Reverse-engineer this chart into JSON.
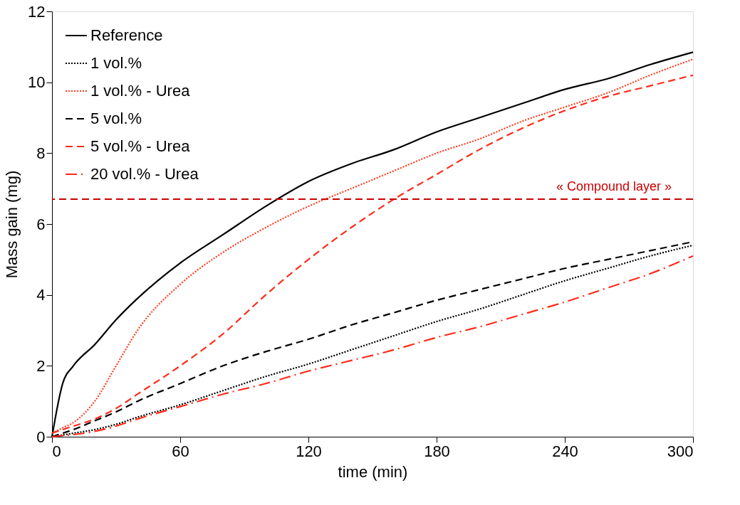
{
  "chart_data": {
    "type": "line",
    "xlabel": "time (min)",
    "ylabel": "Mass gain (mg)",
    "xlim": [
      0,
      300
    ],
    "xticks": [
      0,
      60,
      120,
      180,
      240,
      300
    ],
    "ylim": [
      0,
      12
    ],
    "yticks": [
      0,
      2,
      4,
      6,
      8,
      10,
      12
    ],
    "grid": false,
    "legend": "top left",
    "marker": "none",
    "x": [
      0,
      5,
      10,
      20,
      30,
      40,
      60,
      80,
      100,
      120,
      140,
      160,
      180,
      200,
      220,
      240,
      260,
      280,
      300
    ],
    "series": [
      {
        "name": "Reference",
        "color": "#000000",
        "line_style": "solid",
        "values": [
          0,
          1.5,
          2.0,
          2.6,
          3.3,
          3.9,
          4.9,
          5.7,
          6.5,
          7.2,
          7.7,
          8.1,
          8.6,
          9.0,
          9.4,
          9.8,
          10.1,
          10.5,
          10.85
        ]
      },
      {
        "name": "1 vol.%",
        "color": "#000000",
        "line_style": "dotted",
        "values": [
          0,
          0.05,
          0.1,
          0.2,
          0.35,
          0.55,
          0.9,
          1.3,
          1.7,
          2.05,
          2.45,
          2.85,
          3.25,
          3.6,
          4.0,
          4.4,
          4.75,
          5.1,
          5.4
        ]
      },
      {
        "name": "1 vol.% - Urea",
        "color": "#ff3b1f",
        "line_style": "dotted",
        "values": [
          0.1,
          0.25,
          0.4,
          1.0,
          2.0,
          3.0,
          4.3,
          5.2,
          5.9,
          6.5,
          7.0,
          7.5,
          8.0,
          8.4,
          8.9,
          9.3,
          9.7,
          10.2,
          10.65
        ]
      },
      {
        "name": "5 vol.%",
        "color": "#000000",
        "line_style": "dashed",
        "values": [
          0,
          0.1,
          0.2,
          0.45,
          0.7,
          1.0,
          1.5,
          2.0,
          2.4,
          2.75,
          3.15,
          3.5,
          3.85,
          4.15,
          4.45,
          4.75,
          5.0,
          5.25,
          5.5
        ]
      },
      {
        "name": "5 vol.% - Urea",
        "color": "#ff2a1a",
        "line_style": "dashed",
        "values": [
          0.1,
          0.2,
          0.3,
          0.5,
          0.8,
          1.2,
          2.0,
          2.9,
          4.0,
          5.0,
          5.9,
          6.7,
          7.4,
          8.1,
          8.7,
          9.2,
          9.6,
          9.9,
          10.2
        ]
      },
      {
        "name": "20 vol.% - Urea",
        "color": "#ff2a1a",
        "line_style": "dashdot",
        "values": [
          0,
          0.03,
          0.06,
          0.15,
          0.3,
          0.5,
          0.85,
          1.2,
          1.5,
          1.85,
          2.15,
          2.45,
          2.8,
          3.1,
          3.45,
          3.8,
          4.2,
          4.6,
          5.1
        ]
      }
    ],
    "ref_lines": [
      {
        "axis": "y",
        "value": 6.7,
        "label": "« Compound layer »",
        "color": "#cc0000",
        "line_style": "dashed"
      }
    ]
  }
}
